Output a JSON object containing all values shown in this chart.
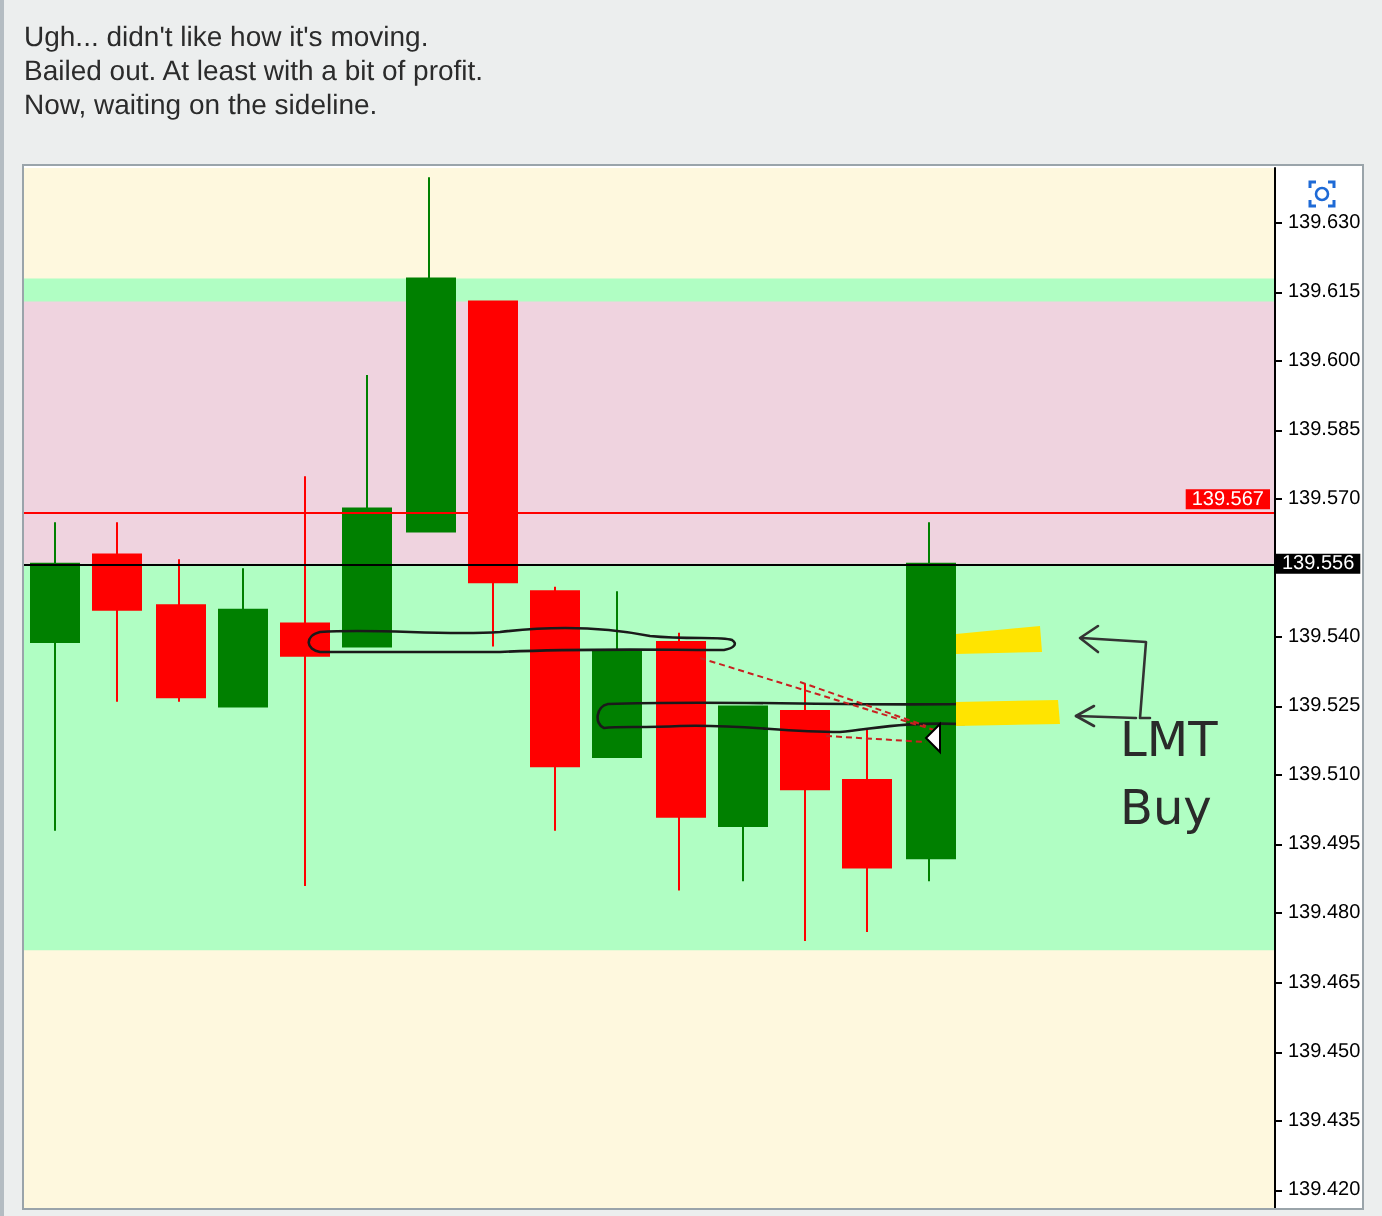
{
  "chart_data": {
    "type": "candlestick",
    "annotations": [
      "Ugh... didn't like how it's moving.",
      "Bailed out. At least with a bit of profit.",
      "Now, waiting on the sideline.",
      "LMT Buy"
    ],
    "categories": [
      null,
      null,
      null,
      null,
      null,
      null,
      null,
      null,
      null,
      null,
      null,
      null,
      null,
      null,
      null,
      null,
      null,
      null,
      null,
      null
    ],
    "ohlc": [
      [
        139.539,
        139.565,
        139.498,
        139.556
      ],
      [
        139.558,
        139.565,
        139.526,
        139.546
      ],
      [
        139.547,
        139.557,
        139.526,
        139.527
      ],
      [
        139.525,
        139.555,
        139.525,
        139.546
      ],
      [
        139.543,
        139.575,
        139.486,
        139.536
      ],
      [
        139.538,
        139.597,
        139.538,
        139.568
      ],
      [
        139.563,
        139.64,
        139.563,
        139.618
      ],
      [
        139.613,
        139.613,
        139.538,
        139.552
      ],
      [
        139.55,
        139.551,
        139.498,
        139.512
      ],
      [
        139.514,
        139.55,
        139.514,
        139.537
      ],
      [
        139.539,
        139.541,
        139.485,
        139.501
      ],
      [
        139.499,
        139.525,
        139.487,
        139.525
      ],
      [
        139.524,
        139.53,
        139.474,
        139.507
      ],
      [
        139.509,
        139.52,
        139.476,
        139.49
      ],
      [
        139.492,
        139.565,
        139.487,
        139.556
      ],
      null,
      null,
      null,
      null,
      null
    ],
    "colors": [
      "#008000",
      "#ff0000",
      "#ff0000",
      "#008000",
      "#ff0000",
      "#008000",
      "#008000",
      "#ff0000",
      "#ff0000",
      "#008000",
      "#ff0000",
      "#008000",
      "#ff0000",
      "#ff0000",
      "#008000",
      null,
      null,
      null,
      null,
      null
    ],
    "ylim": [
      139.416,
      139.642
    ],
    "yticks": [
      {
        "value": 139.42,
        "label": "139.420"
      },
      139.435,
      {
        "value": 139.45,
        "label": "139.450"
      },
      139.465,
      {
        "value": 139.48,
        "label": "139.480"
      },
      139.495,
      {
        "value": 139.51,
        "label": "139.510"
      },
      139.525,
      {
        "value": 139.54,
        "label": "139.540"
      },
      {
        "value": 139.57,
        "label": "139.570"
      },
      139.585,
      {
        "value": 139.6,
        "label": "139.600"
      },
      139.615,
      {
        "value": 139.63,
        "label": "139.630"
      }
    ],
    "ref_lines": [
      {
        "axis": "y",
        "value": 139.567,
        "label": "139.567",
        "color": "#ff0000"
      },
      {
        "axis": "y",
        "value": 139.556,
        "label": "139.556",
        "color": "#000000"
      }
    ],
    "bands": [
      {
        "axis": "y",
        "from": 139.472,
        "to": 139.618,
        "color": "#9cffbc"
      },
      {
        "axis": "y",
        "from": 139.556,
        "to": 139.613,
        "color": "#ffc8e6"
      }
    ]
  }
}
